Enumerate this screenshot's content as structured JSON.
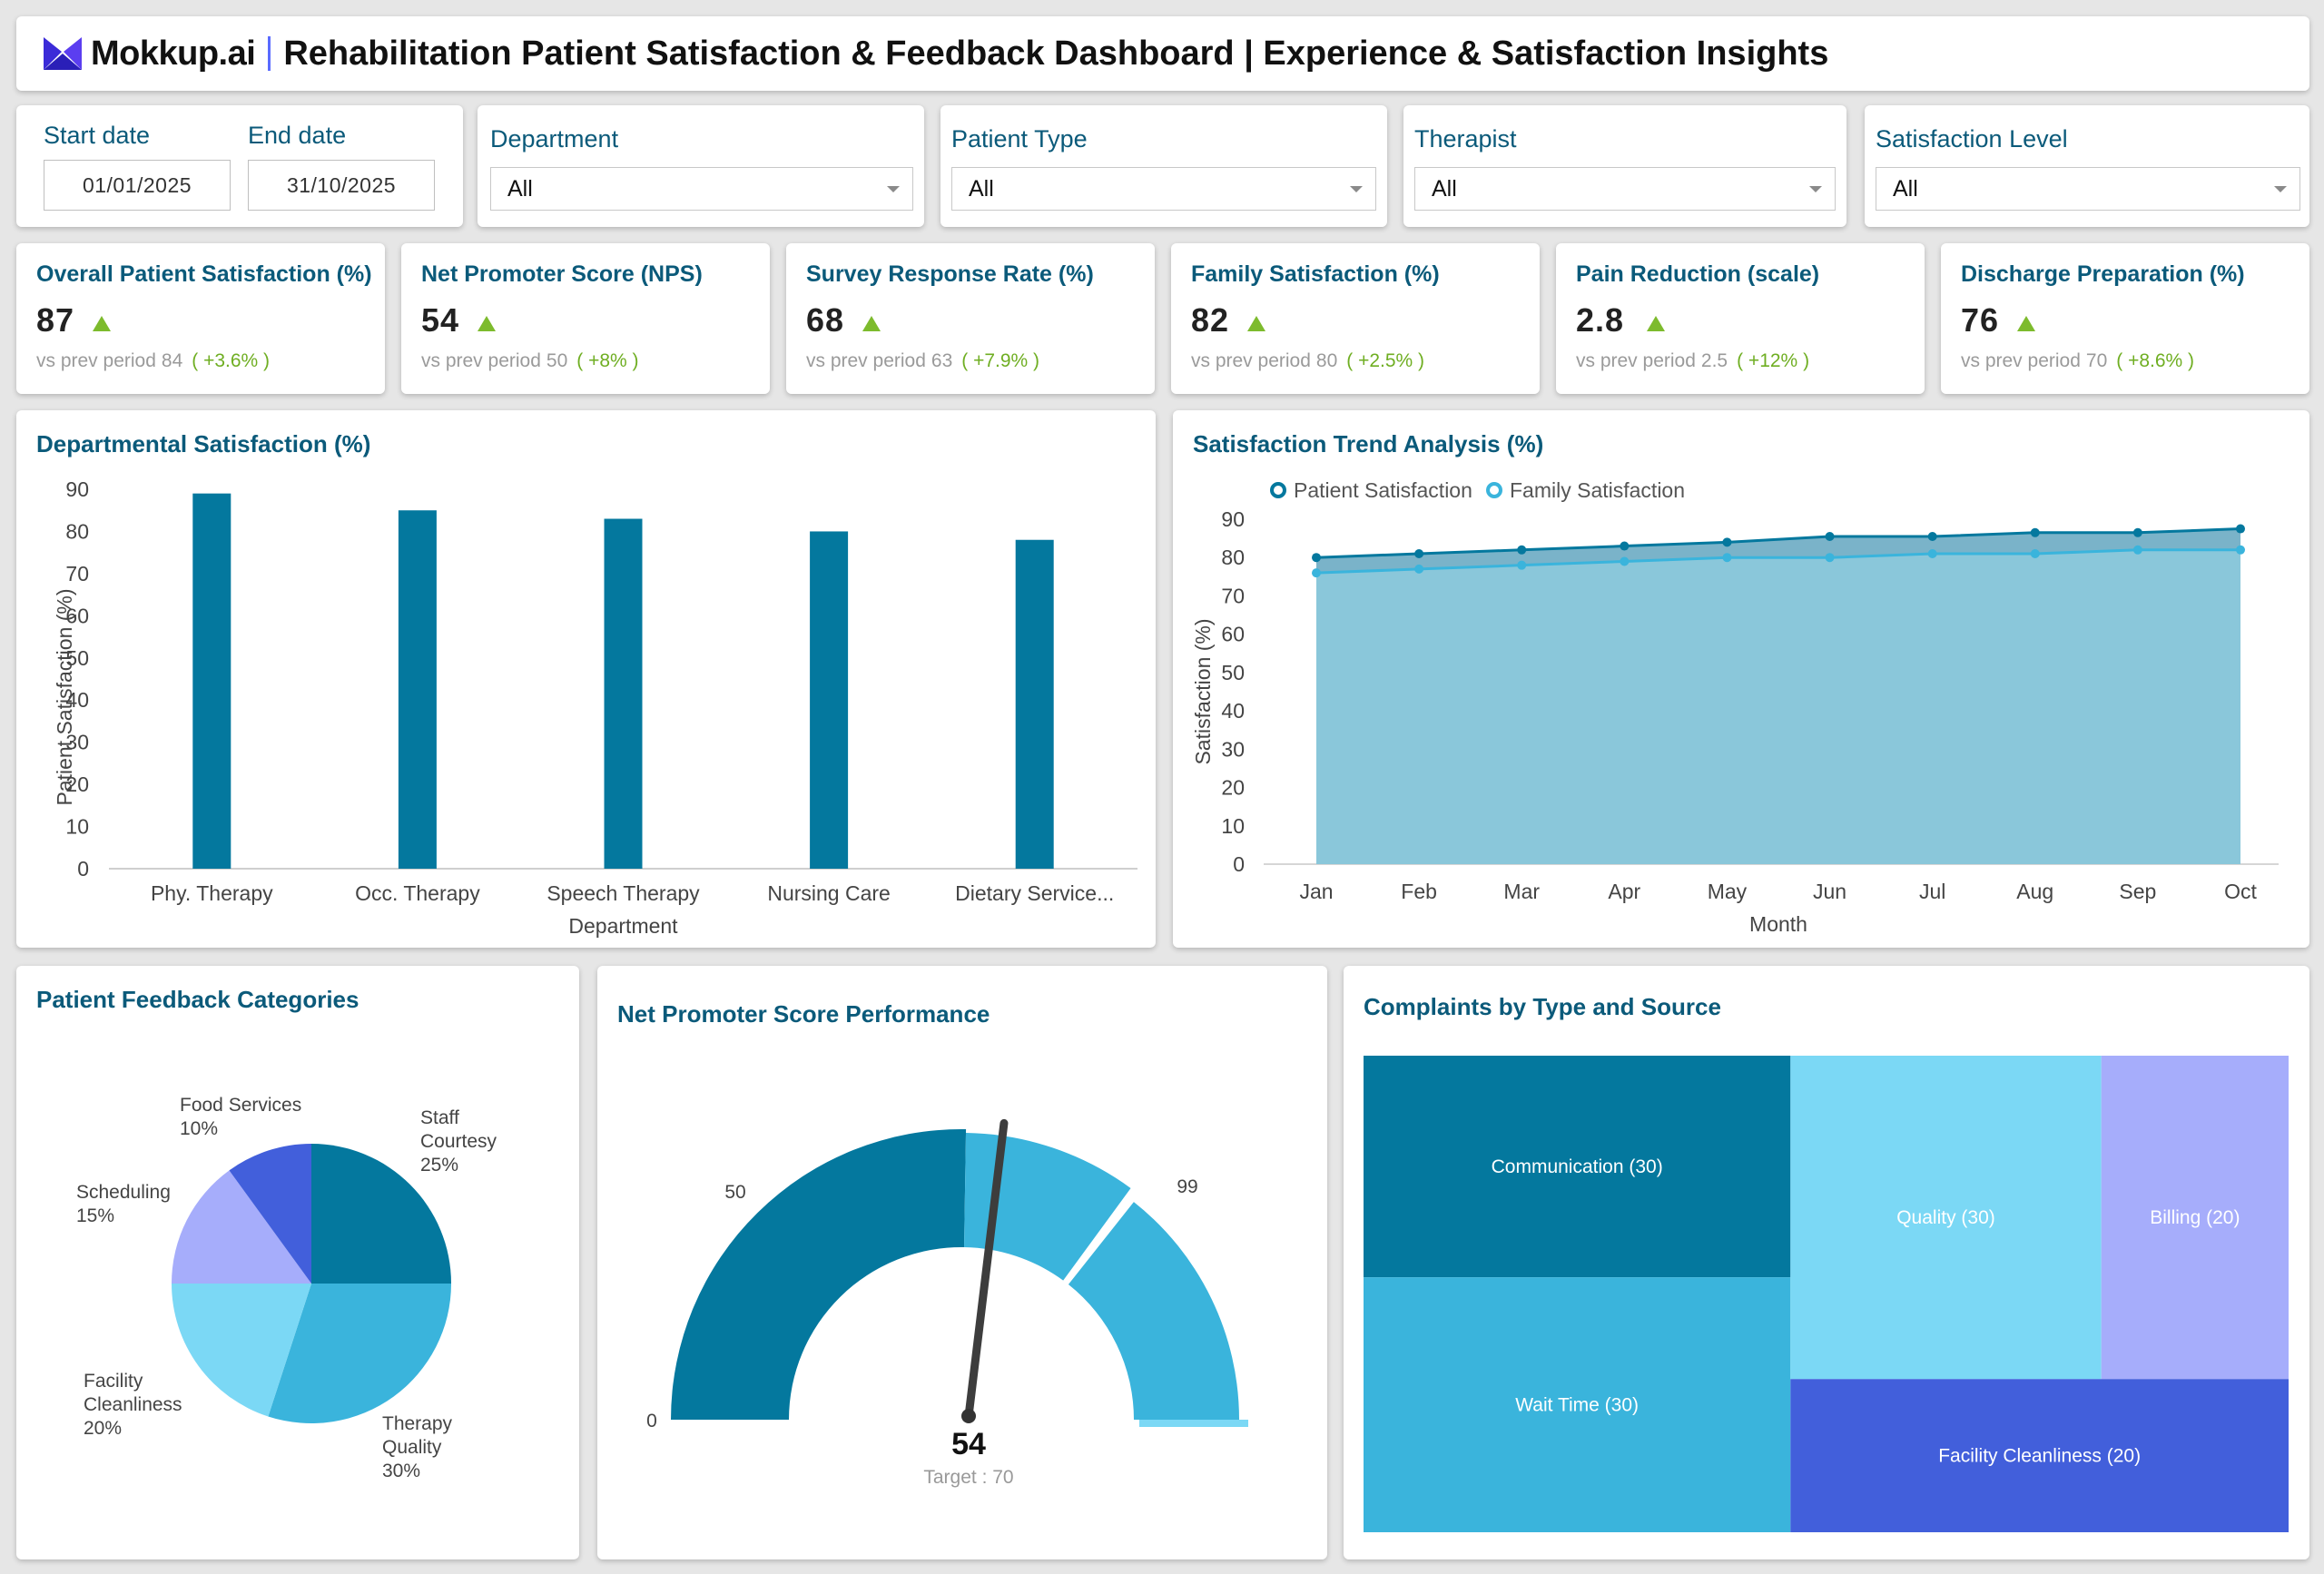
{
  "header": {
    "logo_text": "Mokkup.ai",
    "title": "Rehabilitation Patient Satisfaction & Feedback Dashboard | Experience & Satisfaction Insights"
  },
  "filters": {
    "start_label": "Start date",
    "start_value": "01/01/2025",
    "end_label": "End date",
    "end_value": "31/10/2025",
    "department": {
      "label": "Department",
      "value": "All"
    },
    "patient_type": {
      "label": "Patient Type",
      "value": "All"
    },
    "therapist": {
      "label": "Therapist",
      "value": "All"
    },
    "satisfaction_level": {
      "label": "Satisfaction Level",
      "value": "All"
    }
  },
  "kpis": [
    {
      "title": "Overall Patient Satisfaction (%)",
      "value": "87",
      "prev_label": "vs prev period",
      "prev": "84",
      "change": "( +3.6% )"
    },
    {
      "title": "Net Promoter Score (NPS)",
      "value": "54",
      "prev_label": "vs prev period",
      "prev": "50",
      "change": "( +8% )"
    },
    {
      "title": "Survey Response Rate (%)",
      "value": "68",
      "prev_label": "vs prev period",
      "prev": "63",
      "change": "( +7.9% )"
    },
    {
      "title": "Family Satisfaction (%)",
      "value": "82",
      "prev_label": "vs prev period",
      "prev": "80",
      "change": "( +2.5% )"
    },
    {
      "title": "Pain Reduction (scale)",
      "value": "2.8",
      "prev_label": "vs prev period",
      "prev": "2.5",
      "change": "( +12% )"
    },
    {
      "title": "Discharge Preparation (%)",
      "value": "76",
      "prev_label": "vs prev period",
      "prev": "70",
      "change": "( +8.6% )"
    }
  ],
  "colors": {
    "dark": "#04789e",
    "mid": "#3ab4dc",
    "light": "#7bd8f5",
    "lavender": "#a6adfb",
    "indigo": "#425fdb",
    "kpi_up": "#7dbb2d",
    "title": "#0b5a7a"
  },
  "chart_data": [
    {
      "type": "bar",
      "title": "Departmental Satisfaction (%)",
      "xlabel": "Department",
      "ylabel": "Patient Satisfaction (%)",
      "ylim": [
        0,
        90
      ],
      "yticks": [
        "0",
        "10",
        "20",
        "30",
        "40",
        "50",
        "60",
        "70",
        "80",
        "90"
      ],
      "categories": [
        "Phy. Therapy",
        "Occ. Therapy",
        "Speech Therapy",
        "Nursing Care",
        "Dietary Service..."
      ],
      "values": [
        89,
        85,
        83,
        80,
        78
      ]
    },
    {
      "type": "area",
      "title": "Satisfaction Trend Analysis (%)",
      "xlabel": "Month",
      "ylabel": "Satisfaction (%)",
      "ylim": [
        0,
        90
      ],
      "yticks": [
        "0",
        "10",
        "20",
        "30",
        "40",
        "50",
        "60",
        "70",
        "80",
        "90"
      ],
      "x": [
        "Jan",
        "Feb",
        "Mar",
        "Apr",
        "May",
        "Jun",
        "Jul",
        "Aug",
        "Sep",
        "Oct"
      ],
      "legend_position": "top-left",
      "series": [
        {
          "name": "Patient Satisfaction",
          "values": [
            80,
            81,
            82,
            83,
            84,
            85.5,
            85.5,
            86.5,
            86.5,
            87.5
          ]
        },
        {
          "name": "Family Satisfaction",
          "values": [
            76,
            77,
            78,
            79,
            80,
            80,
            81,
            81,
            82,
            82
          ]
        }
      ]
    },
    {
      "type": "pie",
      "title": "Patient Feedback Categories",
      "slices": [
        {
          "label": "Staff Courtesy",
          "value": 25,
          "pct": "25%"
        },
        {
          "label": "Therapy Quality",
          "value": 30,
          "pct": "30%"
        },
        {
          "label": "Facility Cleanliness",
          "value": 20,
          "pct": "20%"
        },
        {
          "label": "Scheduling",
          "value": 15,
          "pct": "15%"
        },
        {
          "label": "Food Services",
          "value": 10,
          "pct": "10%"
        }
      ]
    },
    {
      "type": "gauge",
      "title": "Net Promoter Score Performance",
      "min": 0,
      "max": 99,
      "mid_label": "50",
      "min_label": "0",
      "max_label": "99",
      "value": 54,
      "value_label": "54",
      "target": 70,
      "target_label": "Target : 70"
    },
    {
      "type": "treemap",
      "title": "Complaints by Type and Source",
      "items": [
        {
          "label": "Communication (30)",
          "value": 30
        },
        {
          "label": "Wait Time (30)",
          "value": 30
        },
        {
          "label": "Quality (30)",
          "value": 30
        },
        {
          "label": "Billing (20)",
          "value": 20
        },
        {
          "label": "Facility Cleanliness (20)",
          "value": 20
        }
      ]
    }
  ]
}
